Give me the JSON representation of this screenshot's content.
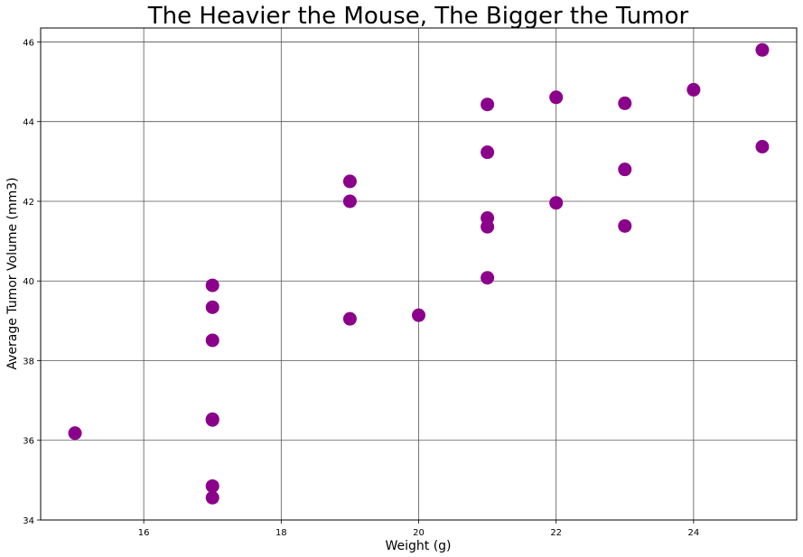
{
  "chart_data": {
    "type": "scatter",
    "title": "The Heavier the Mouse, The Bigger the Tumor",
    "xlabel": "Weight (g)",
    "ylabel": "Average Tumor Volume (mm3)",
    "xlim": [
      14.5,
      25.5
    ],
    "ylim": [
      34,
      46.35
    ],
    "xticks": [
      16,
      18,
      20,
      22,
      24
    ],
    "yticks": [
      34,
      36,
      38,
      40,
      42,
      44,
      46
    ],
    "grid": true,
    "marker_color": "#8B008B",
    "points": [
      {
        "x": 15,
        "y": 36.18
      },
      {
        "x": 17,
        "y": 39.89
      },
      {
        "x": 17,
        "y": 39.34
      },
      {
        "x": 17,
        "y": 38.51
      },
      {
        "x": 17,
        "y": 36.53
      },
      {
        "x": 17,
        "y": 36.51
      },
      {
        "x": 17,
        "y": 34.85
      },
      {
        "x": 17,
        "y": 34.56
      },
      {
        "x": 19,
        "y": 42.5
      },
      {
        "x": 19,
        "y": 42.0
      },
      {
        "x": 19,
        "y": 39.05
      },
      {
        "x": 20,
        "y": 39.14
      },
      {
        "x": 21,
        "y": 44.43
      },
      {
        "x": 21,
        "y": 43.23
      },
      {
        "x": 21,
        "y": 41.58
      },
      {
        "x": 21,
        "y": 41.36
      },
      {
        "x": 21,
        "y": 40.08
      },
      {
        "x": 22,
        "y": 44.61
      },
      {
        "x": 22,
        "y": 41.96
      },
      {
        "x": 23,
        "y": 44.46
      },
      {
        "x": 23,
        "y": 42.8
      },
      {
        "x": 23,
        "y": 41.38
      },
      {
        "x": 24,
        "y": 44.8
      },
      {
        "x": 25,
        "y": 45.8
      },
      {
        "x": 25,
        "y": 43.37
      }
    ]
  }
}
